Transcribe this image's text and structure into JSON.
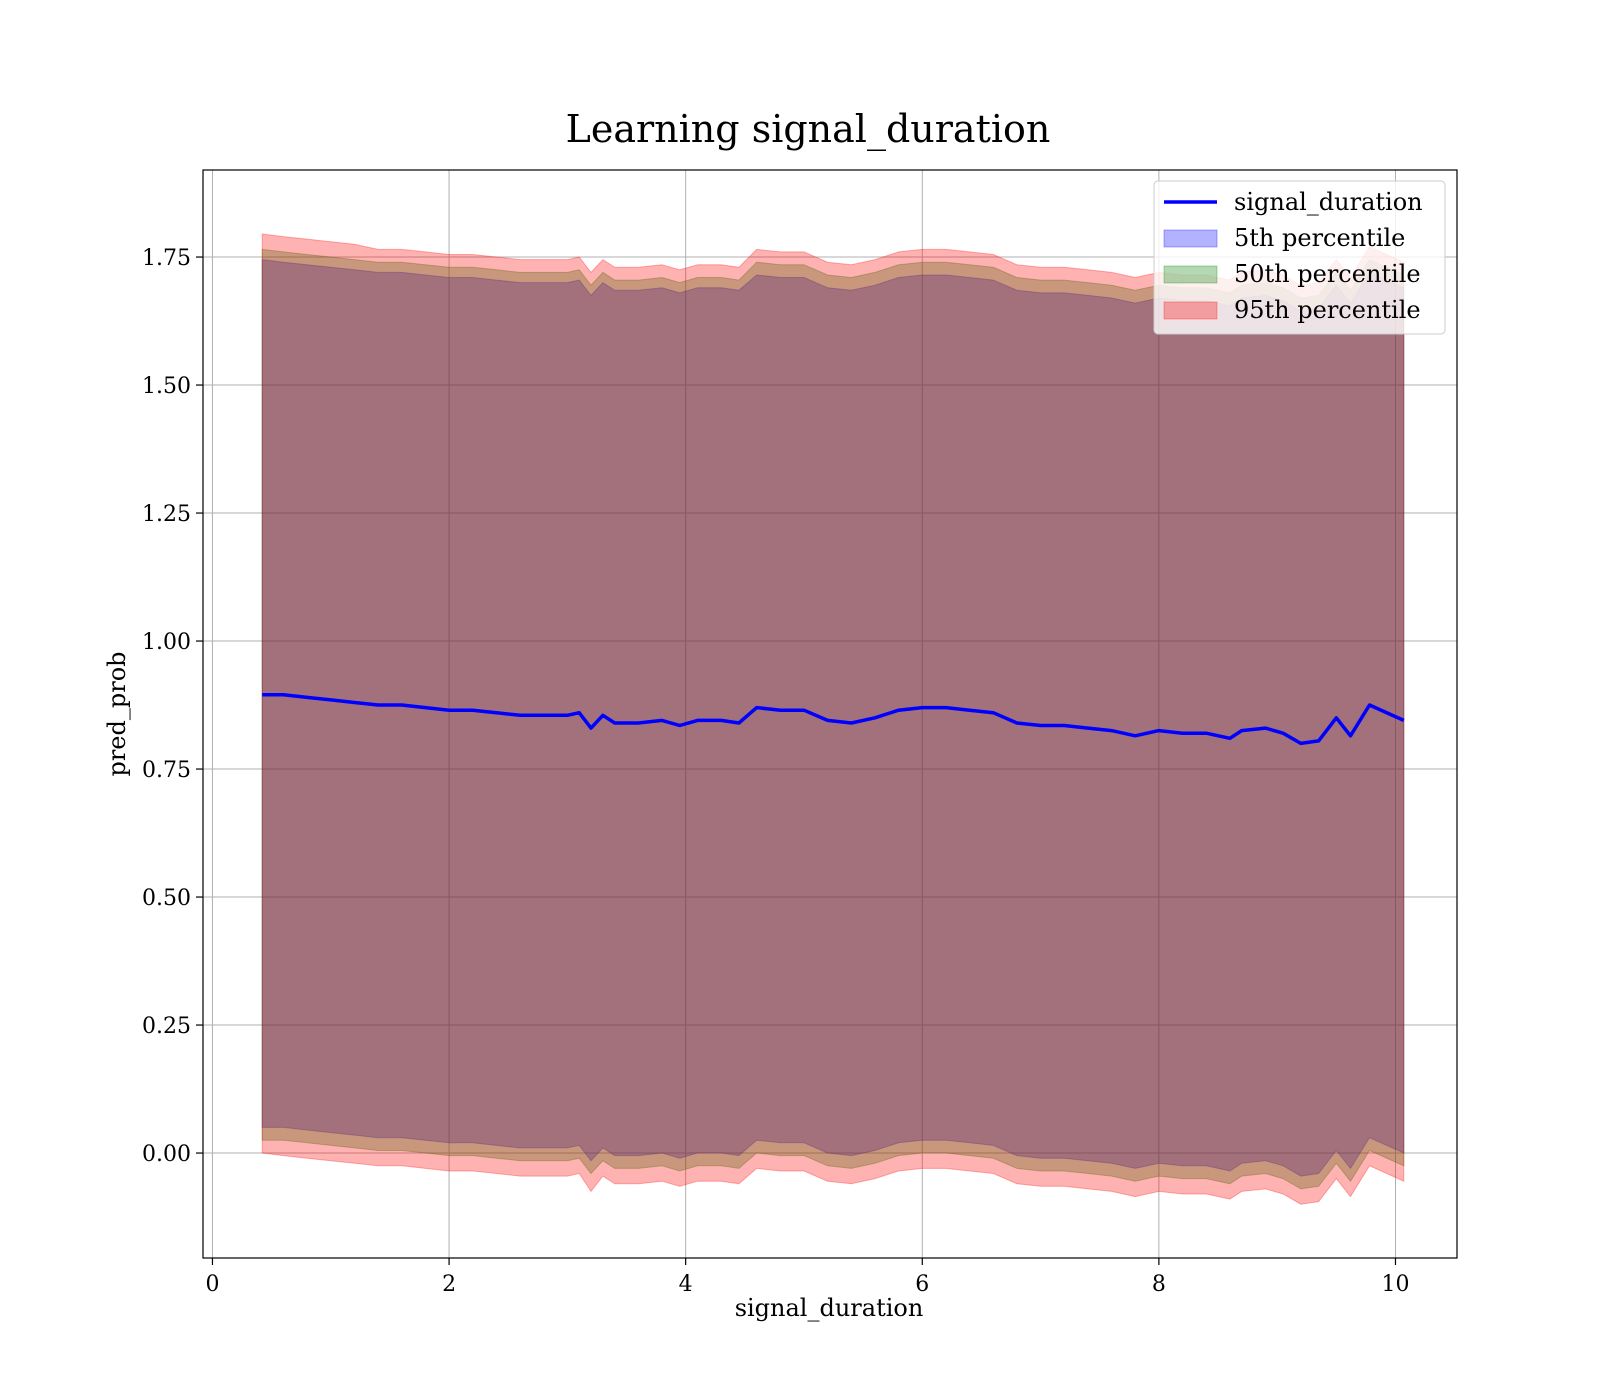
{
  "chart_data": {
    "type": "line",
    "title": "Learning signal_duration",
    "xlabel": "signal_duration",
    "ylabel": "pred_prob",
    "xlim": [
      -0.08,
      10.52
    ],
    "ylim": [
      -0.205,
      1.92
    ],
    "xticks": [
      0,
      2,
      4,
      6,
      8,
      10
    ],
    "xtick_labels": [
      "0",
      "2",
      "4",
      "6",
      "8",
      "10"
    ],
    "yticks": [
      0.0,
      0.25,
      0.5,
      0.75,
      1.0,
      1.25,
      1.5,
      1.75
    ],
    "ytick_labels": [
      "0.00",
      "0.25",
      "0.50",
      "0.75",
      "1.00",
      "1.25",
      "1.50",
      "1.75"
    ],
    "grid": true,
    "legend_position": "top-right",
    "x": [
      0.42,
      0.6,
      0.8,
      1.0,
      1.2,
      1.4,
      1.6,
      1.8,
      2.0,
      2.2,
      2.4,
      2.6,
      2.8,
      3.0,
      3.1,
      3.2,
      3.3,
      3.4,
      3.6,
      3.8,
      3.95,
      4.1,
      4.3,
      4.45,
      4.6,
      4.8,
      5.0,
      5.2,
      5.4,
      5.6,
      5.8,
      6.0,
      6.2,
      6.4,
      6.6,
      6.8,
      7.0,
      7.2,
      7.4,
      7.6,
      7.8,
      8.0,
      8.2,
      8.4,
      8.6,
      8.7,
      8.9,
      9.05,
      9.2,
      9.35,
      9.5,
      9.62,
      9.78,
      10.07
    ],
    "series": [
      {
        "name": "signal_duration",
        "color": "#0000ff",
        "values": [
          0.895,
          0.895,
          0.89,
          0.885,
          0.88,
          0.875,
          0.875,
          0.87,
          0.865,
          0.865,
          0.86,
          0.855,
          0.855,
          0.855,
          0.86,
          0.83,
          0.855,
          0.84,
          0.84,
          0.845,
          0.835,
          0.845,
          0.845,
          0.84,
          0.87,
          0.865,
          0.865,
          0.845,
          0.84,
          0.85,
          0.865,
          0.87,
          0.87,
          0.865,
          0.86,
          0.84,
          0.835,
          0.835,
          0.83,
          0.825,
          0.815,
          0.825,
          0.82,
          0.82,
          0.81,
          0.825,
          0.83,
          0.82,
          0.8,
          0.805,
          0.85,
          0.815,
          0.875,
          0.845
        ]
      },
      {
        "name": "5th percentile",
        "color": "#0000ff",
        "upper": [
          1.745,
          1.74,
          1.735,
          1.73,
          1.725,
          1.72,
          1.72,
          1.715,
          1.71,
          1.71,
          1.705,
          1.7,
          1.7,
          1.7,
          1.705,
          1.675,
          1.7,
          1.685,
          1.685,
          1.69,
          1.68,
          1.69,
          1.69,
          1.685,
          1.715,
          1.71,
          1.71,
          1.69,
          1.685,
          1.695,
          1.71,
          1.715,
          1.715,
          1.71,
          1.705,
          1.685,
          1.68,
          1.68,
          1.675,
          1.67,
          1.66,
          1.67,
          1.665,
          1.665,
          1.655,
          1.67,
          1.675,
          1.665,
          1.645,
          1.65,
          1.695,
          1.66,
          1.72,
          1.69
        ],
        "lower": [
          0.05,
          0.05,
          0.045,
          0.04,
          0.035,
          0.03,
          0.03,
          0.025,
          0.02,
          0.02,
          0.015,
          0.01,
          0.01,
          0.01,
          0.015,
          -0.015,
          0.01,
          -0.005,
          -0.005,
          0.0,
          -0.01,
          0.0,
          0.0,
          -0.005,
          0.025,
          0.02,
          0.02,
          0.0,
          -0.005,
          0.005,
          0.02,
          0.025,
          0.025,
          0.02,
          0.015,
          -0.005,
          -0.01,
          -0.01,
          -0.015,
          -0.02,
          -0.03,
          -0.02,
          -0.025,
          -0.025,
          -0.035,
          -0.02,
          -0.015,
          -0.025,
          -0.045,
          -0.04,
          0.005,
          -0.03,
          0.03,
          0.0
        ]
      },
      {
        "name": "50th percentile",
        "color": "#008000",
        "upper": [
          1.765,
          1.76,
          1.755,
          1.75,
          1.745,
          1.74,
          1.74,
          1.735,
          1.73,
          1.73,
          1.725,
          1.72,
          1.72,
          1.72,
          1.725,
          1.695,
          1.72,
          1.705,
          1.705,
          1.71,
          1.7,
          1.71,
          1.71,
          1.705,
          1.74,
          1.735,
          1.735,
          1.715,
          1.71,
          1.72,
          1.735,
          1.74,
          1.74,
          1.735,
          1.73,
          1.71,
          1.705,
          1.705,
          1.7,
          1.695,
          1.685,
          1.695,
          1.69,
          1.69,
          1.68,
          1.695,
          1.7,
          1.69,
          1.67,
          1.675,
          1.72,
          1.685,
          1.745,
          1.715
        ],
        "lower": [
          0.025,
          0.025,
          0.02,
          0.015,
          0.01,
          0.005,
          0.005,
          0.0,
          -0.005,
          -0.005,
          -0.01,
          -0.015,
          -0.015,
          -0.015,
          -0.01,
          -0.04,
          -0.015,
          -0.03,
          -0.03,
          -0.025,
          -0.035,
          -0.025,
          -0.025,
          -0.03,
          0.0,
          -0.005,
          -0.005,
          -0.025,
          -0.03,
          -0.02,
          -0.005,
          0.0,
          0.0,
          -0.005,
          -0.01,
          -0.03,
          -0.035,
          -0.035,
          -0.04,
          -0.045,
          -0.055,
          -0.045,
          -0.05,
          -0.05,
          -0.06,
          -0.045,
          -0.04,
          -0.05,
          -0.07,
          -0.065,
          -0.02,
          -0.055,
          0.005,
          -0.025
        ]
      },
      {
        "name": "95th percentile",
        "color": "#ff0000",
        "upper": [
          1.795,
          1.79,
          1.785,
          1.78,
          1.775,
          1.765,
          1.765,
          1.76,
          1.755,
          1.755,
          1.75,
          1.745,
          1.745,
          1.745,
          1.75,
          1.72,
          1.745,
          1.73,
          1.73,
          1.735,
          1.725,
          1.735,
          1.735,
          1.73,
          1.765,
          1.76,
          1.76,
          1.74,
          1.735,
          1.745,
          1.76,
          1.765,
          1.765,
          1.76,
          1.755,
          1.735,
          1.73,
          1.73,
          1.725,
          1.72,
          1.71,
          1.72,
          1.715,
          1.715,
          1.705,
          1.72,
          1.725,
          1.715,
          1.695,
          1.7,
          1.745,
          1.71,
          1.77,
          1.74
        ],
        "lower": [
          0.0,
          -0.005,
          -0.01,
          -0.015,
          -0.02,
          -0.025,
          -0.025,
          -0.03,
          -0.035,
          -0.035,
          -0.04,
          -0.045,
          -0.045,
          -0.045,
          -0.04,
          -0.075,
          -0.045,
          -0.06,
          -0.06,
          -0.055,
          -0.065,
          -0.055,
          -0.055,
          -0.06,
          -0.03,
          -0.035,
          -0.035,
          -0.055,
          -0.06,
          -0.05,
          -0.035,
          -0.03,
          -0.03,
          -0.035,
          -0.04,
          -0.06,
          -0.065,
          -0.065,
          -0.07,
          -0.075,
          -0.085,
          -0.075,
          -0.08,
          -0.08,
          -0.09,
          -0.075,
          -0.07,
          -0.08,
          -0.1,
          -0.095,
          -0.05,
          -0.085,
          -0.025,
          -0.055
        ]
      }
    ]
  }
}
